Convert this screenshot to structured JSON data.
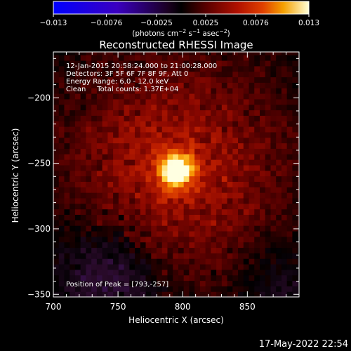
{
  "chart_data": {
    "type": "heatmap",
    "title": "Reconstructed RHESSI Image",
    "xlabel": "Heliocentric X (arcsec)",
    "ylabel": "Heliocentric Y (arcsec)",
    "xlim": [
      700,
      890
    ],
    "ylim": [
      -352,
      -165
    ],
    "x_ticks": [
      700,
      750,
      800,
      850
    ],
    "y_ticks": [
      -200,
      -250,
      -300,
      -350
    ],
    "x_tick_labels": [
      "700",
      "750",
      "800",
      "850"
    ],
    "y_tick_labels": [
      "−200",
      "−250",
      "−300",
      "−350"
    ],
    "colorbar": {
      "range": [
        -0.013,
        0.013
      ],
      "ticks": [
        -0.013,
        -0.0076,
        -0.0025,
        0.0025,
        0.0076,
        0.013
      ],
      "tick_labels": [
        "−0.013",
        "−0.0076",
        "−0.0025",
        "0.0025",
        "0.0076",
        "0.013"
      ],
      "unit_label": "(photons cm",
      "unit_exp1": "−2",
      "unit_mid": " s",
      "unit_exp2": "−1",
      "unit_mid2": " asec",
      "unit_exp3": "−2",
      "unit_close": ")",
      "colormap": [
        "#0000ff",
        "#3a00c0",
        "#4a1880",
        "#2a0830",
        "#000000",
        "#4a0000",
        "#8a0800",
        "#c02000",
        "#e05000",
        "#f58a00",
        "#ffcc30",
        "#ffffe0"
      ]
    },
    "annotations": [
      "12-Jan-2015 20:58:24.000 to 21:00:28.000",
      "Detectors: 3F 5F 6F 7F 8F 9F, Att 0",
      "Energy Range: 6.0 - 12.0 keV",
      "Clean     Total counts: 1.37E+04"
    ],
    "peak_label": "Position of Peak = [793,-257]",
    "peak_position": [
      793,
      -257
    ],
    "peak_value": 0.013,
    "background_level": 0.0035,
    "negative_region_center": [
      745,
      -335
    ],
    "negative_value": -0.0025
  },
  "footer": {
    "timestamp": "17-May-2022 22:54"
  }
}
